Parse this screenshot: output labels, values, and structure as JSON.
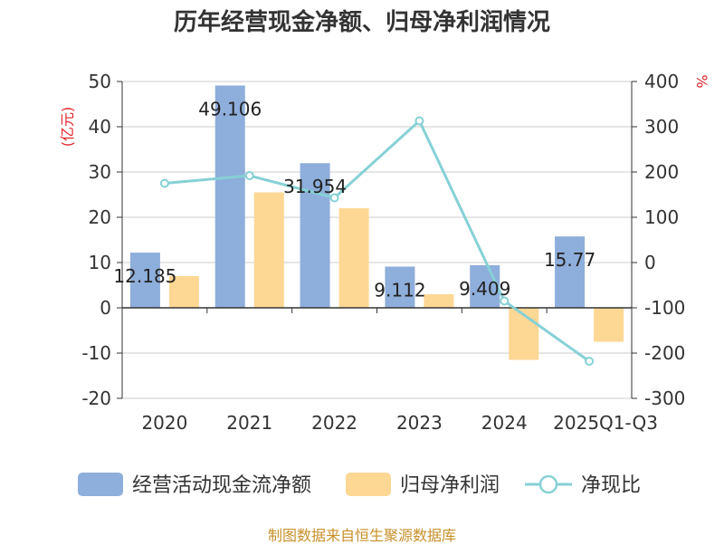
{
  "chart_data": {
    "type": "bar",
    "title": "历年经营现金净额、归母净利润情况",
    "categories": [
      "2020",
      "2021",
      "2022",
      "2023",
      "2024",
      "2025Q1-Q3"
    ],
    "series": [
      {
        "name": "经营活动现金流净额",
        "axis": "left",
        "kind": "bar",
        "values": [
          12.185,
          49.106,
          31.954,
          9.112,
          9.409,
          15.77
        ],
        "labels": [
          "12.185",
          "49.106",
          "31.954",
          "9.112",
          "9.409",
          "15.77"
        ],
        "color": "#8eaedb"
      },
      {
        "name": "归母净利润",
        "axis": "left",
        "kind": "bar",
        "values": [
          7,
          25.5,
          22,
          3,
          -11.5,
          -7.5
        ],
        "color": "#fdd794"
      },
      {
        "name": "净现比",
        "axis": "right",
        "kind": "line",
        "values": [
          175,
          192,
          143,
          313,
          -85,
          -218
        ],
        "color": "#86d1d6"
      }
    ],
    "left_axis": {
      "unit": "(亿元)",
      "min": -20,
      "max": 50,
      "step": 10
    },
    "right_axis": {
      "unit": "%",
      "min": -300,
      "max": 400,
      "step": 100
    }
  },
  "source": "制图数据来自恒生聚源数据库"
}
